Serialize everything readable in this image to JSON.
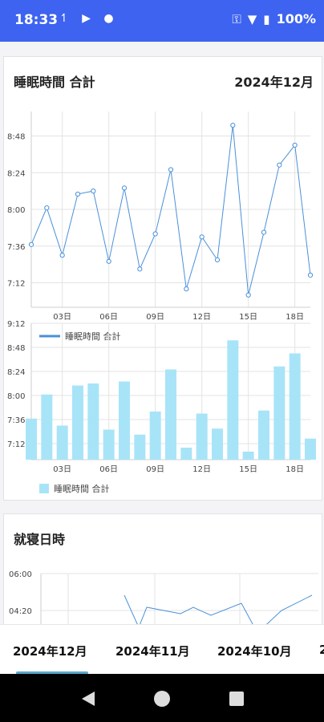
{
  "status_bar": {
    "time": "18:33",
    "battery": "100%"
  },
  "card1": {
    "title": "睡眠時間 合計",
    "month": "2024年12月",
    "legend_line": "睡眠時間 合計",
    "legend_bar": "睡眠時間 合計"
  },
  "card2": {
    "title": "就寝日時"
  },
  "tabs": [
    "2024年12月",
    "2024年11月",
    "2024年10月",
    "2"
  ],
  "colors": {
    "status_bar": "#3d63f0",
    "line": "#4a90d9",
    "bar": "#a8e4f8"
  },
  "chart_data": [
    {
      "type": "line",
      "series": [
        {
          "name": "睡眠時間 合計",
          "values": [
            457,
            481,
            450,
            490,
            492,
            446,
            494,
            441,
            464,
            506,
            428,
            462,
            447,
            535,
            424,
            465,
            509,
            522,
            437
          ]
        }
      ],
      "x": [
        1,
        2,
        3,
        4,
        5,
        6,
        7,
        8,
        9,
        10,
        11,
        12,
        13,
        14,
        15,
        16,
        17,
        18,
        19
      ],
      "yticks": [
        "7:12",
        "7:36",
        "8:00",
        "8:24",
        "8:48"
      ],
      "xticks": [
        "03日",
        "06日",
        "09日",
        "12日",
        "15日",
        "18日"
      ],
      "ylim": [
        416,
        544
      ],
      "legend": "bottom-left",
      "grid": true
    },
    {
      "type": "bar",
      "series": [
        {
          "name": "睡眠時間 合計",
          "values": [
            457,
            481,
            450,
            490,
            492,
            446,
            494,
            441,
            464,
            506,
            428,
            462,
            447,
            535,
            424,
            465,
            509,
            522,
            437
          ]
        }
      ],
      "x": [
        1,
        2,
        3,
        4,
        5,
        6,
        7,
        8,
        9,
        10,
        11,
        12,
        13,
        14,
        15,
        16,
        17,
        18,
        19
      ],
      "yticks": [
        "7:12",
        "7:36",
        "8:00",
        "8:24",
        "8:48",
        "9:12"
      ],
      "xticks": [
        "03日",
        "06日",
        "09日",
        "12日",
        "15日",
        "18日"
      ],
      "ylim": [
        416,
        552
      ],
      "legend": "bottom-left",
      "grid": true
    },
    {
      "type": "line",
      "yticks": [
        "04:20",
        "06:00"
      ],
      "values": [
        75,
        35,
        60,
        52,
        60,
        50,
        65,
        28,
        56,
        75
      ],
      "ylim": [
        0,
        100
      ],
      "grid": true
    }
  ]
}
